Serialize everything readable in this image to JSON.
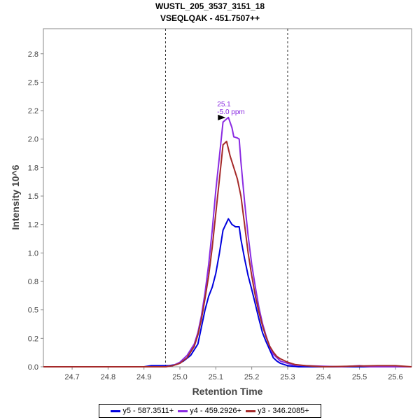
{
  "chart_data": {
    "type": "line",
    "title": "WUSTL_205_3537_3151_18",
    "subtitle": "VSEQLQAK - 451.7507++",
    "xlabel": "Retention Time",
    "ylabel": "Intensity 10^6",
    "xlim": [
      24.62,
      25.645
    ],
    "ylim": [
      0,
      2.97
    ],
    "x_ticks": [
      "24.7",
      "24.8",
      "24.9",
      "25.0",
      "25.1",
      "25.2",
      "25.3",
      "25.4",
      "25.5",
      "25.6"
    ],
    "y_ticks": [
      "0.0",
      "0.2",
      "0.5",
      "0.8",
      "1.0",
      "1.2",
      "1.5",
      "1.8",
      "2.0",
      "2.2",
      "2.5",
      "2.8"
    ],
    "y_tick_values": [
      0.0,
      0.25,
      0.5,
      0.75,
      1.0,
      1.25,
      1.5,
      1.75,
      2.0,
      2.25,
      2.5,
      2.75
    ],
    "integration_bounds": [
      24.96,
      25.3
    ],
    "grid": false,
    "legend_position": "bottom",
    "annotation": {
      "x": 25.135,
      "y": 2.19,
      "lines": [
        "25.1",
        "-5.0 ppm"
      ],
      "color": "#8a2be2"
    },
    "series": [
      {
        "name": "y5 - 587.3511+",
        "color": "#0000dd",
        "points": [
          [
            24.62,
            0.0
          ],
          [
            24.9,
            0.0
          ],
          [
            24.92,
            0.01
          ],
          [
            24.95,
            0.01
          ],
          [
            24.97,
            0.01
          ],
          [
            24.99,
            0.02
          ],
          [
            25.01,
            0.05
          ],
          [
            25.03,
            0.1
          ],
          [
            25.05,
            0.2
          ],
          [
            25.06,
            0.35
          ],
          [
            25.07,
            0.5
          ],
          [
            25.08,
            0.62
          ],
          [
            25.09,
            0.7
          ],
          [
            25.1,
            0.82
          ],
          [
            25.11,
            1.0
          ],
          [
            25.12,
            1.2
          ],
          [
            25.135,
            1.3
          ],
          [
            25.145,
            1.25
          ],
          [
            25.155,
            1.23
          ],
          [
            25.165,
            1.23
          ],
          [
            25.17,
            1.12
          ],
          [
            25.18,
            0.95
          ],
          [
            25.19,
            0.8
          ],
          [
            25.2,
            0.68
          ],
          [
            25.21,
            0.55
          ],
          [
            25.22,
            0.42
          ],
          [
            25.23,
            0.3
          ],
          [
            25.24,
            0.22
          ],
          [
            25.25,
            0.15
          ],
          [
            25.26,
            0.08
          ],
          [
            25.27,
            0.05
          ],
          [
            25.28,
            0.03
          ],
          [
            25.3,
            0.01
          ],
          [
            25.33,
            0.0
          ],
          [
            25.645,
            0.0
          ]
        ]
      },
      {
        "name": "y4 - 459.2926+",
        "color": "#8a2be2",
        "points": [
          [
            24.62,
            0.0
          ],
          [
            24.96,
            0.0
          ],
          [
            24.98,
            0.01
          ],
          [
            25.0,
            0.04
          ],
          [
            25.02,
            0.1
          ],
          [
            25.04,
            0.2
          ],
          [
            25.05,
            0.3
          ],
          [
            25.06,
            0.45
          ],
          [
            25.07,
            0.65
          ],
          [
            25.08,
            0.9
          ],
          [
            25.09,
            1.2
          ],
          [
            25.1,
            1.55
          ],
          [
            25.11,
            1.85
          ],
          [
            25.12,
            2.15
          ],
          [
            25.135,
            2.19
          ],
          [
            25.145,
            2.1
          ],
          [
            25.15,
            2.02
          ],
          [
            25.16,
            2.01
          ],
          [
            25.165,
            2.0
          ],
          [
            25.17,
            1.8
          ],
          [
            25.18,
            1.45
          ],
          [
            25.19,
            1.15
          ],
          [
            25.2,
            0.9
          ],
          [
            25.21,
            0.7
          ],
          [
            25.22,
            0.52
          ],
          [
            25.23,
            0.38
          ],
          [
            25.24,
            0.27
          ],
          [
            25.25,
            0.18
          ],
          [
            25.26,
            0.11
          ],
          [
            25.27,
            0.08
          ],
          [
            25.28,
            0.05
          ],
          [
            25.3,
            0.03
          ],
          [
            25.32,
            0.015
          ],
          [
            25.35,
            0.01
          ],
          [
            25.4,
            0.005
          ],
          [
            25.45,
            0.0
          ],
          [
            25.5,
            0.01
          ],
          [
            25.53,
            0.0
          ],
          [
            25.645,
            0.0
          ]
        ]
      },
      {
        "name": "y3 - 346.2085+",
        "color": "#a52a2a",
        "points": [
          [
            24.62,
            0.0
          ],
          [
            24.96,
            0.0
          ],
          [
            24.98,
            0.01
          ],
          [
            25.0,
            0.03
          ],
          [
            25.02,
            0.08
          ],
          [
            25.04,
            0.18
          ],
          [
            25.05,
            0.28
          ],
          [
            25.06,
            0.42
          ],
          [
            25.07,
            0.6
          ],
          [
            25.08,
            0.8
          ],
          [
            25.09,
            1.05
          ],
          [
            25.1,
            1.35
          ],
          [
            25.11,
            1.65
          ],
          [
            25.12,
            1.95
          ],
          [
            25.13,
            1.98
          ],
          [
            25.14,
            1.85
          ],
          [
            25.15,
            1.75
          ],
          [
            25.16,
            1.65
          ],
          [
            25.17,
            1.5
          ],
          [
            25.18,
            1.25
          ],
          [
            25.19,
            1.0
          ],
          [
            25.2,
            0.8
          ],
          [
            25.21,
            0.62
          ],
          [
            25.22,
            0.48
          ],
          [
            25.23,
            0.36
          ],
          [
            25.24,
            0.26
          ],
          [
            25.25,
            0.18
          ],
          [
            25.26,
            0.13
          ],
          [
            25.27,
            0.09
          ],
          [
            25.28,
            0.07
          ],
          [
            25.3,
            0.04
          ],
          [
            25.32,
            0.02
          ],
          [
            25.35,
            0.01
          ],
          [
            25.4,
            0.0
          ],
          [
            25.55,
            0.01
          ],
          [
            25.6,
            0.01
          ],
          [
            25.645,
            0.0
          ]
        ]
      }
    ]
  }
}
